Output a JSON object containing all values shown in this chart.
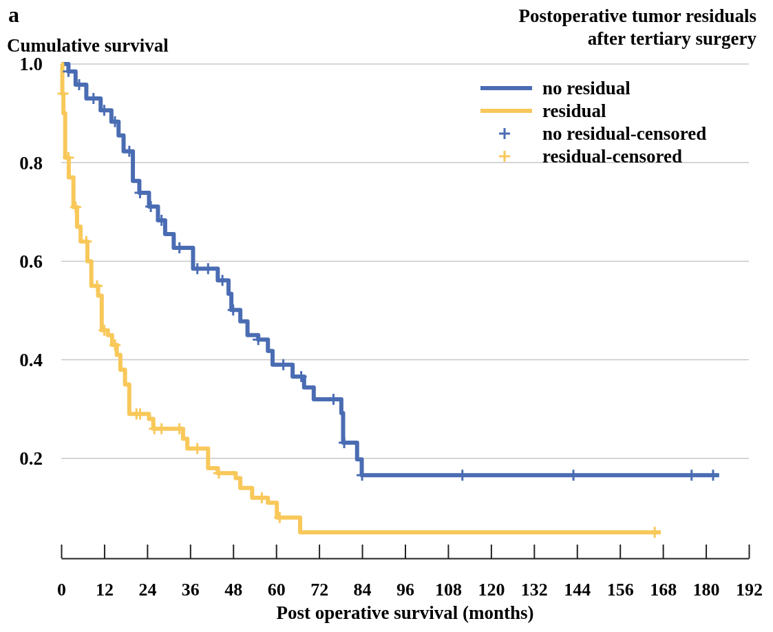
{
  "chart_data": {
    "type": "step",
    "ylabel": "Cumulative survival",
    "xlabel": "Post operative survival (months)",
    "legend_title": "Postoperative tumor residuals after tertiary surgery",
    "annotations": [
      "a"
    ],
    "xlim": [
      0,
      192
    ],
    "xticks": [
      0,
      12,
      24,
      36,
      48,
      60,
      72,
      84,
      96,
      108,
      120,
      132,
      144,
      156,
      168,
      180,
      192
    ],
    "ylim": [
      0,
      1
    ],
    "yticks": [
      {
        "value": 0.2,
        "label": "0.2"
      },
      {
        "value": 0.4,
        "label": "0.4"
      },
      {
        "value": 0.6,
        "label": "0.6"
      },
      {
        "value": 0.8,
        "label": "0.8"
      },
      {
        "value": 1,
        "label": "1.0"
      }
    ],
    "grid": "y",
    "legend": "top right",
    "tick_labels": "xy",
    "series": [
      {
        "name": "no residual",
        "color": "#4a6cb3",
        "x": [
          0,
          2,
          4,
          7,
          11,
          14,
          16,
          17.4,
          20,
          21.8,
          24.5,
          27,
          29,
          31.4,
          36.8,
          43.7,
          46.7,
          47.5,
          50,
          52,
          55,
          57.7,
          59,
          64.6,
          67.8,
          70.5,
          78.2,
          78.7,
          82.6,
          83.9,
          183.7
        ],
        "values": [
          1.0,
          0.985,
          0.958,
          0.93,
          0.906,
          0.883,
          0.855,
          0.823,
          0.763,
          0.739,
          0.711,
          0.683,
          0.655,
          0.627,
          0.585,
          0.561,
          0.534,
          0.501,
          0.478,
          0.45,
          0.441,
          0.418,
          0.39,
          0.366,
          0.344,
          0.32,
          0.292,
          0.232,
          0.198,
          0.166,
          0.166
        ]
      },
      {
        "name": "residual",
        "color": "#f8c85a",
        "x": [
          0,
          0.3,
          0.6,
          1.1,
          2.1,
          3.4,
          4.4,
          5.4,
          7.3,
          8.4,
          10.3,
          11.3,
          13,
          14.2,
          15.5,
          16.5,
          17.8,
          19,
          24.5,
          25.7,
          34,
          35.2,
          41,
          43.7,
          48.7,
          50,
          53.3,
          57.7,
          60.2,
          66.7,
          167.4
        ],
        "values": [
          1.0,
          0.94,
          0.9,
          0.81,
          0.77,
          0.71,
          0.67,
          0.64,
          0.6,
          0.55,
          0.53,
          0.46,
          0.45,
          0.43,
          0.41,
          0.38,
          0.35,
          0.29,
          0.28,
          0.26,
          0.24,
          0.22,
          0.18,
          0.17,
          0.16,
          0.14,
          0.12,
          0.11,
          0.08,
          0.05,
          0.05
        ]
      },
      {
        "name": "no residual-censored",
        "type": "scatter",
        "marker": "cross",
        "color": "#4a6cb3",
        "x": [
          2,
          5,
          9,
          12,
          15,
          19,
          22,
          25,
          28,
          33,
          38,
          41,
          45,
          48,
          55,
          62,
          67,
          76,
          79,
          84,
          112,
          143,
          176,
          182
        ],
        "values": [
          0.985,
          0.958,
          0.93,
          0.906,
          0.883,
          0.823,
          0.739,
          0.711,
          0.683,
          0.627,
          0.585,
          0.585,
          0.561,
          0.501,
          0.441,
          0.39,
          0.366,
          0.32,
          0.232,
          0.166,
          0.166,
          0.166,
          0.166,
          0.166
        ]
      },
      {
        "name": "residual-censored",
        "type": "scatter",
        "marker": "cross",
        "color": "#f8c85a",
        "x": [
          0.5,
          2,
          4,
          7,
          10,
          12,
          15,
          21,
          22,
          26,
          28,
          33,
          38,
          44,
          56,
          61,
          165.7
        ],
        "values": [
          0.94,
          0.81,
          0.71,
          0.64,
          0.55,
          0.46,
          0.43,
          0.29,
          0.29,
          0.26,
          0.26,
          0.26,
          0.22,
          0.17,
          0.12,
          0.08,
          0.05
        ]
      }
    ]
  }
}
